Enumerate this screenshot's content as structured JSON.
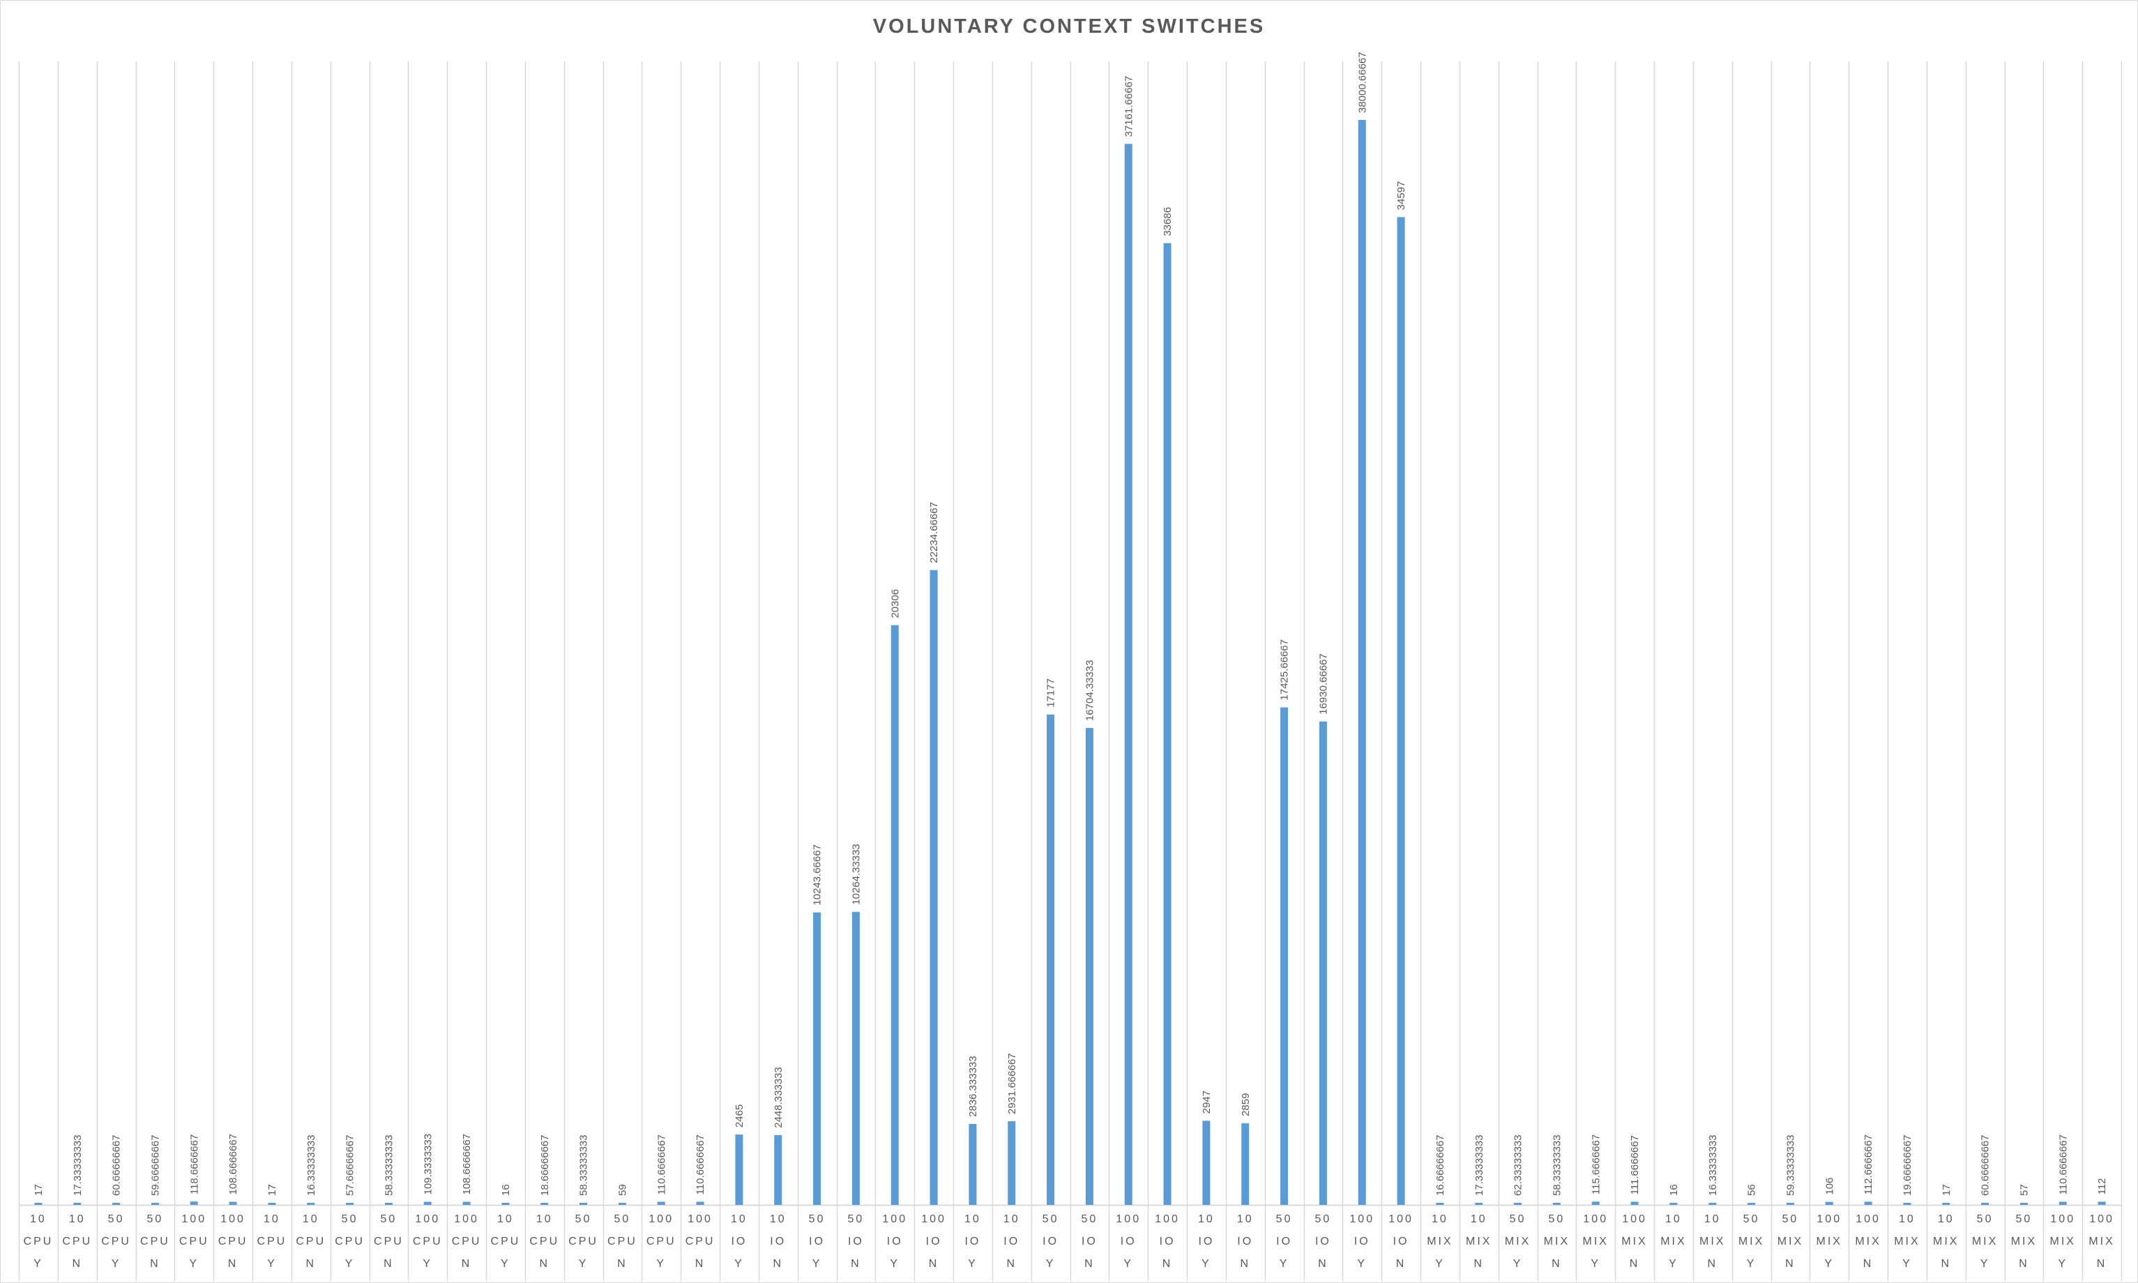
{
  "chart_data": {
    "type": "bar",
    "title": "VOLUNTARY CONTEXT SWITCHES",
    "xlabel": "",
    "ylabel": "",
    "ylim": [
      0,
      38000.66667
    ],
    "grid": true,
    "legend": "none",
    "bar_color": "#5B9BD5",
    "categories": [
      [
        "10",
        "CPU",
        "Y"
      ],
      [
        "10",
        "CPU",
        "N"
      ],
      [
        "50",
        "CPU",
        "Y"
      ],
      [
        "50",
        "CPU",
        "N"
      ],
      [
        "100",
        "CPU",
        "Y"
      ],
      [
        "100",
        "CPU",
        "N"
      ],
      [
        "10",
        "CPU",
        "Y"
      ],
      [
        "10",
        "CPU",
        "N"
      ],
      [
        "50",
        "CPU",
        "Y"
      ],
      [
        "50",
        "CPU",
        "N"
      ],
      [
        "100",
        "CPU",
        "Y"
      ],
      [
        "100",
        "CPU",
        "N"
      ],
      [
        "10",
        "CPU",
        "Y"
      ],
      [
        "10",
        "CPU",
        "N"
      ],
      [
        "50",
        "CPU",
        "Y"
      ],
      [
        "50",
        "CPU",
        "N"
      ],
      [
        "100",
        "CPU",
        "Y"
      ],
      [
        "100",
        "CPU",
        "N"
      ],
      [
        "10",
        "IO",
        "Y"
      ],
      [
        "10",
        "IO",
        "N"
      ],
      [
        "50",
        "IO",
        "Y"
      ],
      [
        "50",
        "IO",
        "N"
      ],
      [
        "100",
        "IO",
        "Y"
      ],
      [
        "100",
        "IO",
        "N"
      ],
      [
        "10",
        "IO",
        "Y"
      ],
      [
        "10",
        "IO",
        "N"
      ],
      [
        "50",
        "IO",
        "Y"
      ],
      [
        "50",
        "IO",
        "N"
      ],
      [
        "100",
        "IO",
        "Y"
      ],
      [
        "100",
        "IO",
        "N"
      ],
      [
        "10",
        "IO",
        "Y"
      ],
      [
        "10",
        "IO",
        "N"
      ],
      [
        "50",
        "IO",
        "Y"
      ],
      [
        "50",
        "IO",
        "N"
      ],
      [
        "100",
        "IO",
        "Y"
      ],
      [
        "100",
        "IO",
        "N"
      ],
      [
        "10",
        "MIX",
        "Y"
      ],
      [
        "10",
        "MIX",
        "N"
      ],
      [
        "50",
        "MIX",
        "Y"
      ],
      [
        "50",
        "MIX",
        "N"
      ],
      [
        "100",
        "MIX",
        "Y"
      ],
      [
        "100",
        "MIX",
        "N"
      ],
      [
        "10",
        "MIX",
        "Y"
      ],
      [
        "10",
        "MIX",
        "N"
      ],
      [
        "50",
        "MIX",
        "Y"
      ],
      [
        "50",
        "MIX",
        "N"
      ],
      [
        "100",
        "MIX",
        "Y"
      ],
      [
        "100",
        "MIX",
        "N"
      ],
      [
        "10",
        "MIX",
        "Y"
      ],
      [
        "10",
        "MIX",
        "N"
      ],
      [
        "50",
        "MIX",
        "Y"
      ],
      [
        "50",
        "MIX",
        "N"
      ],
      [
        "100",
        "MIX",
        "Y"
      ],
      [
        "100",
        "MIX",
        "N"
      ]
    ],
    "values": [
      17,
      17.33333333,
      60.66666667,
      59.66666667,
      118.6666667,
      108.6666667,
      17,
      16.33333333,
      57.66666667,
      58.33333333,
      109.3333333,
      108.6666667,
      16,
      18.66666667,
      58.33333333,
      59,
      110.6666667,
      110.6666667,
      2465,
      2448.333333,
      10243.66667,
      10264.33333,
      20306,
      22234.66667,
      2836.333333,
      2931.666667,
      17177,
      16704.33333,
      37161.66667,
      33686,
      2947,
      2859,
      17425.66667,
      16930.66667,
      38000.66667,
      34597,
      16.66666667,
      17.33333333,
      62.33333333,
      58.33333333,
      115.6666667,
      111.6666667,
      16,
      16.33333333,
      56,
      59.33333333,
      106,
      112.6666667,
      19.66666667,
      17,
      60.66666667,
      57,
      110.6666667,
      112
    ],
    "data_labels": [
      "17",
      "17.33333333",
      "60.66666667",
      "59.66666667",
      "118.6666667",
      "108.6666667",
      "17",
      "16.33333333",
      "57.66666667",
      "58.33333333",
      "109.3333333",
      "108.6666667",
      "16",
      "18.66666667",
      "58.33333333",
      "59",
      "110.6666667",
      "110.6666667",
      "2465",
      "2448.333333",
      "10243.66667",
      "10264.33333",
      "20306",
      "22234.66667",
      "2836.333333",
      "2931.666667",
      "17177",
      "16704.33333",
      "37161.66667",
      "33686",
      "2947",
      "2859",
      "17425.66667",
      "16930.66667",
      "38000.66667",
      "34597",
      "16.66666667",
      "17.33333333",
      "62.33333333",
      "58.33333333",
      "115.6666667",
      "111.6666667",
      "16",
      "16.33333333",
      "56",
      "59.33333333",
      "106",
      "112.6666667",
      "19.66666667",
      "17",
      "60.66666667",
      "57",
      "110.6666667",
      "112"
    ]
  }
}
